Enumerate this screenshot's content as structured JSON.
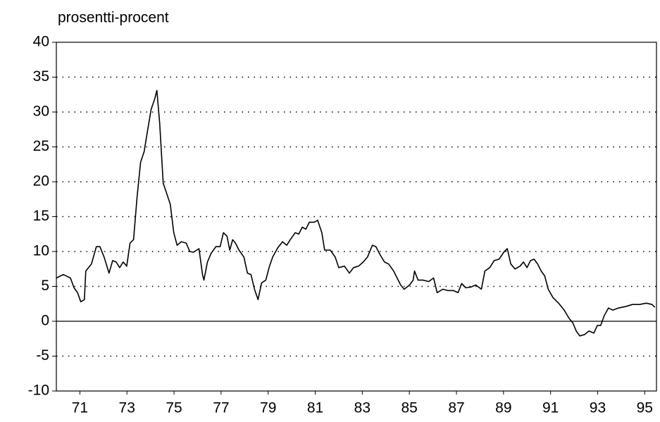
{
  "chart_data": {
    "type": "line",
    "title": "prosentti-procent",
    "x": [
      1970.0,
      1970.3,
      1970.6,
      1970.75,
      1970.9,
      1971.04,
      1971.19,
      1971.25,
      1971.49,
      1971.7,
      1971.85,
      1972.03,
      1972.24,
      1972.39,
      1972.54,
      1972.69,
      1972.84,
      1972.99,
      1973.13,
      1973.28,
      1973.43,
      1973.58,
      1973.73,
      1973.88,
      1974.03,
      1974.18,
      1974.27,
      1974.39,
      1974.54,
      1974.69,
      1974.84,
      1974.99,
      1975.13,
      1975.31,
      1975.52,
      1975.67,
      1975.82,
      1976.06,
      1976.21,
      1976.27,
      1976.42,
      1976.57,
      1976.78,
      1976.96,
      1977.1,
      1977.25,
      1977.37,
      1977.49,
      1977.61,
      1977.76,
      1977.97,
      1978.12,
      1978.27,
      1978.42,
      1978.57,
      1978.72,
      1978.9,
      1979.04,
      1979.19,
      1979.4,
      1979.61,
      1979.79,
      1979.94,
      1980.15,
      1980.3,
      1980.45,
      1980.6,
      1980.75,
      1980.96,
      1981.1,
      1981.28,
      1981.4,
      1981.64,
      1981.85,
      1982.0,
      1982.24,
      1982.45,
      1982.63,
      1982.84,
      1983.04,
      1983.22,
      1983.43,
      1983.58,
      1983.73,
      1983.94,
      1984.12,
      1984.33,
      1984.48,
      1984.63,
      1984.78,
      1985.01,
      1985.16,
      1985.22,
      1985.37,
      1985.58,
      1985.82,
      1986.03,
      1986.18,
      1986.42,
      1986.63,
      1986.87,
      1987.07,
      1987.22,
      1987.4,
      1987.61,
      1987.82,
      1988.06,
      1988.21,
      1988.42,
      1988.6,
      1988.81,
      1989.01,
      1989.16,
      1989.31,
      1989.49,
      1989.7,
      1989.85,
      1990.0,
      1990.15,
      1990.3,
      1990.45,
      1990.6,
      1990.75,
      1990.9,
      1991.1,
      1991.34,
      1991.58,
      1991.79,
      1991.94,
      1992.09,
      1992.24,
      1992.45,
      1992.63,
      1992.84,
      1992.99,
      1993.13,
      1993.28,
      1993.46,
      1993.64,
      1993.88,
      1994.18,
      1994.48,
      1994.78,
      1995.07,
      1995.31,
      1995.43
    ],
    "series": [
      {
        "color": "#000000",
        "values": [
          6.2,
          6.7,
          6.2,
          4.8,
          4.1,
          2.8,
          3.1,
          7.2,
          8.2,
          10.7,
          10.7,
          9.2,
          6.9,
          8.7,
          8.5,
          7.7,
          8.5,
          7.9,
          11.2,
          11.7,
          17.8,
          22.8,
          24.3,
          27.4,
          30.4,
          31.9,
          33.1,
          28.4,
          19.8,
          18.3,
          16.8,
          12.7,
          10.9,
          11.4,
          11.2,
          10.0,
          9.9,
          10.4,
          6.7,
          5.9,
          8.5,
          9.7,
          10.7,
          10.7,
          12.7,
          12.2,
          10.2,
          11.7,
          11.2,
          10.2,
          9.2,
          6.9,
          6.7,
          4.6,
          3.1,
          5.5,
          5.9,
          7.7,
          9.2,
          10.5,
          11.4,
          10.9,
          11.7,
          12.7,
          12.5,
          13.5,
          13.2,
          14.2,
          14.2,
          14.5,
          12.7,
          10.2,
          10.2,
          9.2,
          7.7,
          7.9,
          6.9,
          7.7,
          7.9,
          8.5,
          9.2,
          10.9,
          10.7,
          9.7,
          8.5,
          8.2,
          7.2,
          6.2,
          5.2,
          4.6,
          5.2,
          5.9,
          7.2,
          5.9,
          5.9,
          5.7,
          6.2,
          4.1,
          4.6,
          4.4,
          4.4,
          4.1,
          5.4,
          4.8,
          4.9,
          5.2,
          4.6,
          7.2,
          7.7,
          8.7,
          8.9,
          9.9,
          10.4,
          8.2,
          7.5,
          7.9,
          8.5,
          7.7,
          8.7,
          8.9,
          8.2,
          7.2,
          6.5,
          4.6,
          3.4,
          2.6,
          1.6,
          0.4,
          -0.2,
          -1.4,
          -2.1,
          -1.9,
          -1.4,
          -1.7,
          -0.6,
          -0.6,
          0.8,
          1.9,
          1.6,
          1.9,
          2.1,
          2.4,
          2.4,
          2.6,
          2.4,
          2.0
        ]
      }
    ],
    "xlim": [
      1970,
      1995.5
    ],
    "xticks": [
      {
        "value": 1971,
        "label": "71"
      },
      {
        "value": 1973,
        "label": "73"
      },
      {
        "value": 1975,
        "label": "75"
      },
      {
        "value": 1977,
        "label": "77"
      },
      {
        "value": 1979,
        "label": "79"
      },
      {
        "value": 1981,
        "label": "81"
      },
      {
        "value": 1983,
        "label": "83"
      },
      {
        "value": 1985,
        "label": "85"
      },
      {
        "value": 1987,
        "label": "87"
      },
      {
        "value": 1989,
        "label": "89"
      },
      {
        "value": 1991,
        "label": "91"
      },
      {
        "value": 1993,
        "label": "93"
      },
      {
        "value": 1995,
        "label": "95"
      }
    ],
    "ylim": [
      -10,
      40
    ],
    "yticks": [
      -10,
      -5,
      0,
      5,
      10,
      15,
      20,
      25,
      30,
      35,
      40
    ],
    "grid": true
  }
}
